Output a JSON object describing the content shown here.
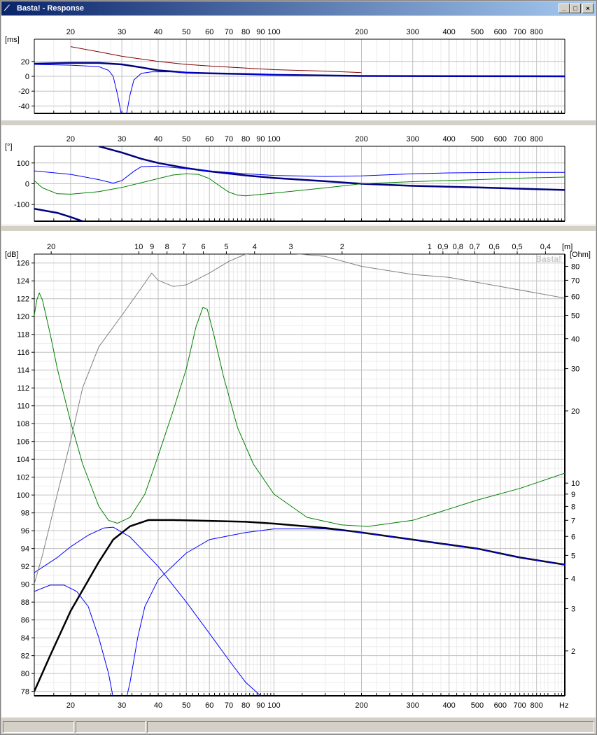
{
  "window": {
    "title": "Basta! - Response",
    "buttons": [
      "minimize",
      "maximize",
      "close"
    ]
  },
  "watermark": "Basta!",
  "chart_data": [
    {
      "type": "line",
      "panel": "group-delay",
      "ylabel": "[ms]",
      "xscale": "log",
      "xlim": [
        15,
        1000
      ],
      "ylim": [
        -50,
        50
      ],
      "x_ticks": [
        20,
        30,
        40,
        50,
        60,
        70,
        80,
        90,
        100,
        200,
        300,
        400,
        500,
        600,
        700,
        800
      ],
      "y_ticks": [
        20,
        0,
        -20,
        -40
      ],
      "series": [
        {
          "color": "#800000",
          "width": 1,
          "points": [
            [
              20,
              40
            ],
            [
              25,
              33
            ],
            [
              30,
              27
            ],
            [
              40,
              20
            ],
            [
              50,
              16
            ],
            [
              60,
              14
            ],
            [
              80,
              11
            ],
            [
              100,
              9
            ],
            [
              150,
              7
            ],
            [
              200,
              5
            ]
          ]
        },
        {
          "color": "#000080",
          "width": 2.5,
          "points": [
            [
              15,
              17
            ],
            [
              20,
              18
            ],
            [
              25,
              18
            ],
            [
              30,
              16
            ],
            [
              35,
              12
            ],
            [
              40,
              8
            ],
            [
              50,
              5
            ],
            [
              60,
              4
            ],
            [
              80,
              3
            ],
            [
              100,
              2
            ],
            [
              200,
              0.5
            ],
            [
              1000,
              0
            ]
          ]
        },
        {
          "color": "#0000ff",
          "width": 1,
          "points": [
            [
              15,
              16
            ],
            [
              20,
              15
            ],
            [
              25,
              13
            ],
            [
              27,
              8
            ],
            [
              28,
              0
            ],
            [
              29,
              -25
            ],
            [
              30,
              -55
            ],
            [
              31,
              -55
            ],
            [
              32,
              -25
            ],
            [
              33,
              -5
            ],
            [
              35,
              4
            ],
            [
              38,
              6
            ],
            [
              45,
              6
            ],
            [
              50,
              5
            ],
            [
              60,
              4
            ],
            [
              80,
              3
            ],
            [
              100,
              2
            ],
            [
              200,
              0.5
            ],
            [
              1000,
              0
            ]
          ]
        }
      ]
    },
    {
      "type": "line",
      "panel": "phase",
      "ylabel": "[°]",
      "xscale": "log",
      "xlim": [
        15,
        1000
      ],
      "ylim": [
        -180,
        180
      ],
      "x_ticks": [
        20,
        30,
        40,
        50,
        60,
        70,
        80,
        90,
        100,
        200,
        300,
        400,
        500,
        600,
        700,
        800
      ],
      "y_ticks": [
        100,
        0,
        -100
      ],
      "series": [
        {
          "color": "#000080",
          "width": 2.5,
          "points": [
            [
              25,
              180
            ],
            [
              30,
              150
            ],
            [
              35,
              120
            ],
            [
              40,
              100
            ],
            [
              50,
              75
            ],
            [
              60,
              60
            ],
            [
              80,
              40
            ],
            [
              100,
              28
            ],
            [
              150,
              12
            ],
            [
              200,
              0
            ],
            [
              300,
              -10
            ],
            [
              500,
              -18
            ],
            [
              1000,
              -30
            ]
          ]
        },
        {
          "color": "#000080",
          "width": 2.5,
          "points": [
            [
              15,
              -120
            ],
            [
              18,
              -140
            ],
            [
              20,
              -160
            ],
            [
              22,
              -180
            ]
          ]
        },
        {
          "color": "#0000ff",
          "width": 1,
          "points": [
            [
              15,
              62
            ],
            [
              20,
              45
            ],
            [
              25,
              20
            ],
            [
              28,
              3
            ],
            [
              30,
              15
            ],
            [
              33,
              60
            ],
            [
              35,
              82
            ],
            [
              40,
              85
            ],
            [
              50,
              72
            ],
            [
              60,
              62
            ],
            [
              80,
              48
            ],
            [
              100,
              40
            ],
            [
              150,
              35
            ],
            [
              200,
              38
            ],
            [
              300,
              48
            ],
            [
              400,
              52
            ],
            [
              600,
              55
            ],
            [
              1000,
              55
            ]
          ]
        },
        {
          "color": "#008000",
          "width": 1,
          "points": [
            [
              15,
              15
            ],
            [
              16,
              -20
            ],
            [
              18,
              -48
            ],
            [
              20,
              -50
            ],
            [
              25,
              -38
            ],
            [
              30,
              -18
            ],
            [
              35,
              5
            ],
            [
              40,
              25
            ],
            [
              45,
              42
            ],
            [
              50,
              48
            ],
            [
              55,
              45
            ],
            [
              60,
              25
            ],
            [
              65,
              -10
            ],
            [
              70,
              -40
            ],
            [
              75,
              -55
            ],
            [
              80,
              -58
            ],
            [
              100,
              -45
            ],
            [
              150,
              -20
            ],
            [
              200,
              0
            ],
            [
              300,
              10
            ],
            [
              500,
              20
            ],
            [
              700,
              27
            ],
            [
              1000,
              32
            ]
          ]
        }
      ]
    },
    {
      "type": "line",
      "panel": "spl-impedance",
      "ylabel": "[dB]",
      "y2label": "[Ohm]",
      "x2label": "[m]",
      "xunit": "Hz",
      "xscale": "log",
      "xlim": [
        15,
        1000
      ],
      "ylim": [
        77.5,
        127
      ],
      "y2scale": "log",
      "y2lim": [
        1.3,
        90
      ],
      "x_ticks": [
        20,
        30,
        40,
        50,
        60,
        70,
        80,
        90,
        100,
        200,
        300,
        400,
        500,
        600,
        700,
        800
      ],
      "x_tick_labels": [
        "20",
        "30",
        "40",
        "50",
        "60",
        "70",
        "80",
        "90",
        "100",
        "200",
        "300",
        "400",
        "500",
        "600",
        "700",
        "800"
      ],
      "y_ticks": [
        78,
        80,
        82,
        84,
        86,
        88,
        90,
        92,
        94,
        96,
        98,
        100,
        102,
        104,
        106,
        108,
        110,
        112,
        114,
        116,
        118,
        120,
        122,
        124,
        126
      ],
      "y_tick_labels": [
        "78",
        "80",
        "82",
        "84",
        "86",
        "88",
        "90",
        "92",
        "94",
        "96",
        "98",
        "100",
        "102",
        "104",
        "106",
        "108",
        "110",
        "112",
        "114",
        "116",
        "118",
        "120",
        "122",
        "124",
        "126"
      ],
      "y2_ticks": [
        2,
        3,
        4,
        5,
        6,
        7,
        8,
        9,
        10,
        20,
        30,
        40,
        50,
        60,
        70,
        80
      ],
      "y2_tick_labels": [
        "2",
        "3",
        "4",
        "5",
        "6",
        "7",
        "8",
        "9",
        "10",
        "20",
        "30",
        "40",
        "50",
        "60",
        "70",
        "80"
      ],
      "top_ticks": [
        {
          "label": "20",
          "x": 17.15
        },
        {
          "label": "10",
          "x": 34.3
        },
        {
          "label": "9",
          "x": 38.1
        },
        {
          "label": "8",
          "x": 42.9
        },
        {
          "label": "7",
          "x": 49.0
        },
        {
          "label": "6",
          "x": 57.2
        },
        {
          "label": "5",
          "x": 68.6
        },
        {
          "label": "4",
          "x": 85.8
        },
        {
          "label": "3",
          "x": 114.3
        },
        {
          "label": "2",
          "x": 171.5
        },
        {
          "label": "1",
          "x": 343
        },
        {
          "label": "0,9",
          "x": 381
        },
        {
          "label": "0,8",
          "x": 429
        },
        {
          "label": "0,7",
          "x": 490
        },
        {
          "label": "0,6",
          "x": 572
        },
        {
          "label": "0,5",
          "x": 686
        },
        {
          "label": "0,4",
          "x": 858
        }
      ],
      "series": [
        {
          "color": "#000000",
          "width": 2.5,
          "points": [
            [
              15,
              78
            ],
            [
              17,
              82
            ],
            [
              20,
              87
            ],
            [
              25,
              92.5
            ],
            [
              28,
              95
            ],
            [
              32,
              96.5
            ],
            [
              37,
              97.2
            ],
            [
              45,
              97.2
            ],
            [
              60,
              97.1
            ],
            [
              80,
              97
            ],
            [
              100,
              96.8
            ],
            [
              150,
              96.3
            ],
            [
              200,
              95.8
            ],
            [
              300,
              95
            ],
            [
              500,
              94
            ],
            [
              700,
              93
            ],
            [
              1000,
              92.2
            ]
          ]
        },
        {
          "color": "#0000ff",
          "width": 1,
          "points": [
            [
              15,
              91.3
            ],
            [
              18,
              93
            ],
            [
              20,
              94.2
            ],
            [
              23,
              95.5
            ],
            [
              26,
              96.3
            ],
            [
              28,
              96.4
            ],
            [
              32,
              95.3
            ],
            [
              40,
              92
            ],
            [
              50,
              88
            ],
            [
              60,
              84.5
            ],
            [
              70,
              81.5
            ],
            [
              80,
              79
            ],
            [
              90,
              77.5
            ]
          ]
        },
        {
          "color": "#0000ff",
          "width": 1,
          "points": [
            [
              15,
              89.2
            ],
            [
              17,
              89.9
            ],
            [
              19,
              89.9
            ],
            [
              21,
              89.2
            ],
            [
              23,
              87.5
            ],
            [
              25,
              84
            ],
            [
              27,
              80
            ],
            [
              28.5,
              76
            ],
            [
              30.5,
              76
            ],
            [
              32,
              79
            ],
            [
              34,
              84
            ],
            [
              36,
              87.5
            ],
            [
              40,
              90.5
            ],
            [
              50,
              93.5
            ],
            [
              60,
              95
            ],
            [
              80,
              95.8
            ],
            [
              100,
              96.2
            ],
            [
              150,
              96.2
            ],
            [
              200,
              95.8
            ],
            [
              300,
              95
            ],
            [
              500,
              94
            ],
            [
              700,
              93
            ],
            [
              1000,
              92.2
            ]
          ]
        },
        {
          "color": "#008000",
          "width": 1,
          "axis": "y2",
          "points": [
            [
              15,
              50
            ],
            [
              15.3,
              58
            ],
            [
              15.6,
              62
            ],
            [
              16,
              58
            ],
            [
              17,
              42
            ],
            [
              18,
              30
            ],
            [
              20,
              18
            ],
            [
              22,
              12
            ],
            [
              25,
              8
            ],
            [
              27,
              7
            ],
            [
              29,
              6.8
            ],
            [
              32,
              7.2
            ],
            [
              36,
              9
            ],
            [
              40,
              13
            ],
            [
              45,
              20
            ],
            [
              50,
              30
            ],
            [
              54,
              45
            ],
            [
              57,
              54
            ],
            [
              59,
              53
            ],
            [
              62,
              42
            ],
            [
              67,
              28
            ],
            [
              75,
              17
            ],
            [
              85,
              12
            ],
            [
              100,
              9
            ],
            [
              130,
              7.2
            ],
            [
              170,
              6.7
            ],
            [
              210,
              6.6
            ],
            [
              300,
              7
            ],
            [
              400,
              7.8
            ],
            [
              500,
              8.5
            ],
            [
              700,
              9.5
            ],
            [
              1000,
              11
            ]
          ]
        },
        {
          "color": "#808080",
          "width": 1,
          "axis": "y2",
          "points": [
            [
              15,
              3.8
            ],
            [
              16,
              5
            ],
            [
              18,
              9
            ],
            [
              20,
              15
            ],
            [
              22,
              25
            ],
            [
              25,
              37
            ],
            [
              30,
              50
            ],
            [
              35,
              65
            ],
            [
              38,
              75
            ],
            [
              40,
              70
            ],
            [
              45,
              66
            ],
            [
              50,
              67
            ],
            [
              60,
              75
            ],
            [
              70,
              84
            ],
            [
              80,
              90
            ],
            [
              100,
              92
            ],
            [
              150,
              88
            ],
            [
              200,
              80
            ],
            [
              300,
              74
            ],
            [
              400,
              72
            ],
            [
              600,
              66
            ],
            [
              1000,
              59
            ]
          ]
        }
      ]
    }
  ]
}
